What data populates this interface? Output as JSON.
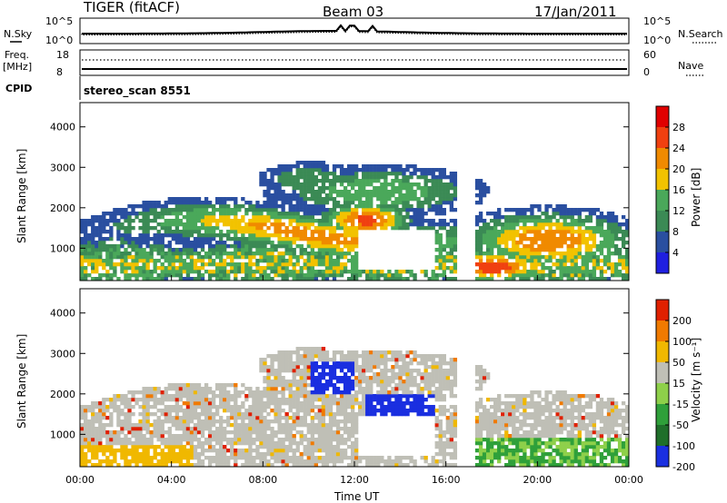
{
  "header": {
    "radar": "TIGER (fitACF)",
    "beam": "Beam 03",
    "date": "17/Jan/2011"
  },
  "noise_panel": {
    "left_label": "N.Sky",
    "left_ticks": [
      "10^5",
      "10^0"
    ],
    "right_label": "N.Search",
    "right_ticks": [
      "10^5",
      "10^0"
    ]
  },
  "freq_panel": {
    "left_label_1": "Freq.",
    "left_label_2": "[MHz]",
    "left_ticks": [
      "18",
      "8"
    ],
    "right_label": "Nave",
    "right_ticks": [
      "60",
      "0"
    ]
  },
  "cpid": {
    "label": "CPID",
    "value": "stereo_scan 8551"
  },
  "colors": {
    "power_scale": [
      "#1f1fe0",
      "#2a4fa0",
      "#3b8a55",
      "#4aa85a",
      "#f2c200",
      "#f08a00",
      "#f04010",
      "#e00000"
    ],
    "velocity_scale": [
      "#1a2fe0",
      "#1f6f2a",
      "#2fa03a",
      "#8ed04a",
      "#bfbfb6",
      "#f0b800",
      "#f07a00",
      "#e02000"
    ]
  },
  "chart_data": [
    {
      "type": "heatmap",
      "panel": "power",
      "ylabel": "Slant Range [km]",
      "yticks": [
        "4000",
        "3000",
        "2000",
        "1000"
      ],
      "ylim": [
        200,
        4600
      ],
      "colorbar_label": "Power [dB]",
      "colorbar_ticks": [
        "28",
        "24",
        "20",
        "16",
        "12",
        "8",
        "4"
      ],
      "colorbar_range": [
        0,
        32
      ]
    },
    {
      "type": "heatmap",
      "panel": "velocity",
      "ylabel": "Slant Range [km]",
      "yticks": [
        "4000",
        "3000",
        "2000",
        "1000"
      ],
      "ylim": [
        200,
        4600
      ],
      "colorbar_label": "Velocity [m s⁻¹]",
      "colorbar_ticks": [
        "200",
        "100",
        "50",
        "15",
        "-15",
        "-50",
        "-100",
        "-200"
      ],
      "xticks": [
        "00:00",
        "04:00",
        "08:00",
        "12:00",
        "16:00",
        "20:00",
        "00:00"
      ],
      "xlabel": "Time UT"
    }
  ]
}
